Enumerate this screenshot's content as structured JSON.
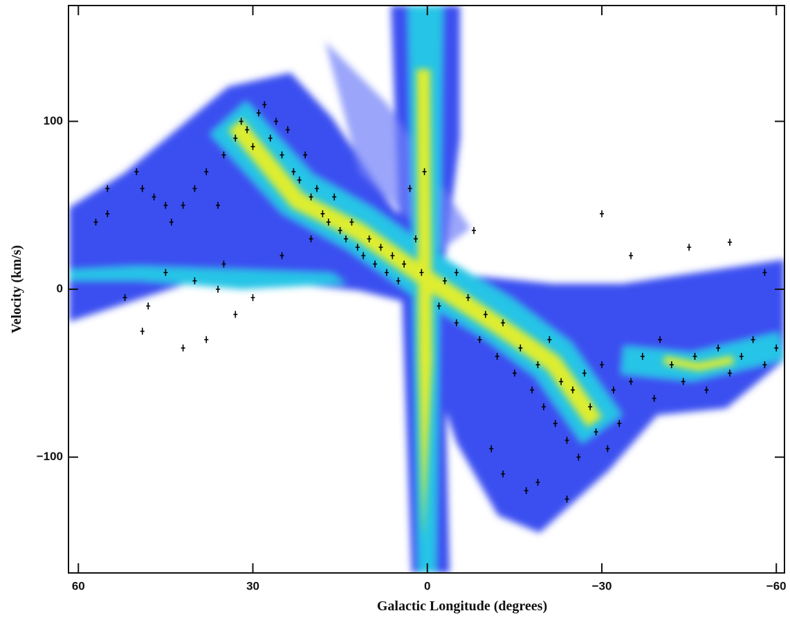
{
  "chart_data": {
    "type": "scatter",
    "x_label": "Galactic Longitude (degrees)",
    "y_label": "Velocity (km/s)",
    "xlim": [
      61.7,
      -61.4
    ],
    "ylim": [
      -169,
      169
    ],
    "xticks": [
      60,
      30,
      0,
      {
        "value": -30,
        "label": "−30"
      },
      {
        "value": -60,
        "label": "−60"
      }
    ],
    "yticks": [
      100,
      0,
      {
        "value": -100,
        "label": "−100"
      }
    ],
    "series": [
      {
        "color": "#000000",
        "x": [
          55,
          50,
          49,
          47,
          45,
          44,
          42,
          40,
          38,
          36,
          35,
          33,
          32,
          31,
          30,
          29,
          28,
          27,
          26,
          25,
          24,
          23,
          22,
          21,
          20,
          19,
          18,
          17,
          16,
          15,
          14,
          13,
          12,
          11,
          10,
          9,
          8,
          7,
          6,
          5,
          4,
          3,
          2,
          1,
          0.5,
          45,
          40,
          35,
          30,
          48,
          49,
          42,
          38,
          52,
          36,
          25,
          20,
          57,
          55,
          33,
          -2,
          -3,
          -5,
          -7,
          -9,
          -10,
          -12,
          -13,
          -15,
          -16,
          -18,
          -19,
          -20,
          -21,
          -22,
          -23,
          -24,
          -25,
          -26,
          -27,
          -28,
          -29,
          -30,
          -31,
          -32,
          -33,
          -35,
          -37,
          -39,
          -40,
          -42,
          -44,
          -46,
          -48,
          -50,
          -52,
          -54,
          -56,
          -58,
          -60,
          -11,
          -13,
          -17,
          -19,
          -24,
          -30,
          -35,
          -45,
          -52,
          -58,
          -8,
          -5
        ],
        "values": [
          60,
          70,
          60,
          55,
          50,
          40,
          50,
          60,
          70,
          50,
          80,
          90,
          100,
          95,
          85,
          105,
          110,
          90,
          100,
          80,
          95,
          70,
          65,
          80,
          55,
          60,
          45,
          40,
          55,
          35,
          30,
          40,
          25,
          20,
          30,
          15,
          25,
          10,
          20,
          5,
          15,
          60,
          30,
          10,
          70,
          10,
          5,
          15,
          -5,
          -10,
          -25,
          -35,
          -30,
          -5,
          0,
          20,
          30,
          40,
          45,
          -15,
          -10,
          5,
          -20,
          -5,
          -30,
          -15,
          -40,
          -20,
          -50,
          -35,
          -60,
          -45,
          -70,
          -30,
          -80,
          -55,
          -90,
          -60,
          -100,
          -50,
          -70,
          -85,
          -45,
          -95,
          -60,
          -80,
          -55,
          -40,
          -65,
          -30,
          -45,
          -55,
          -40,
          -60,
          -35,
          -50,
          -40,
          -30,
          -45,
          -35,
          -95,
          -110,
          -120,
          -115,
          -125,
          45,
          20,
          25,
          28,
          10,
          35,
          10
        ]
      }
    ]
  }
}
